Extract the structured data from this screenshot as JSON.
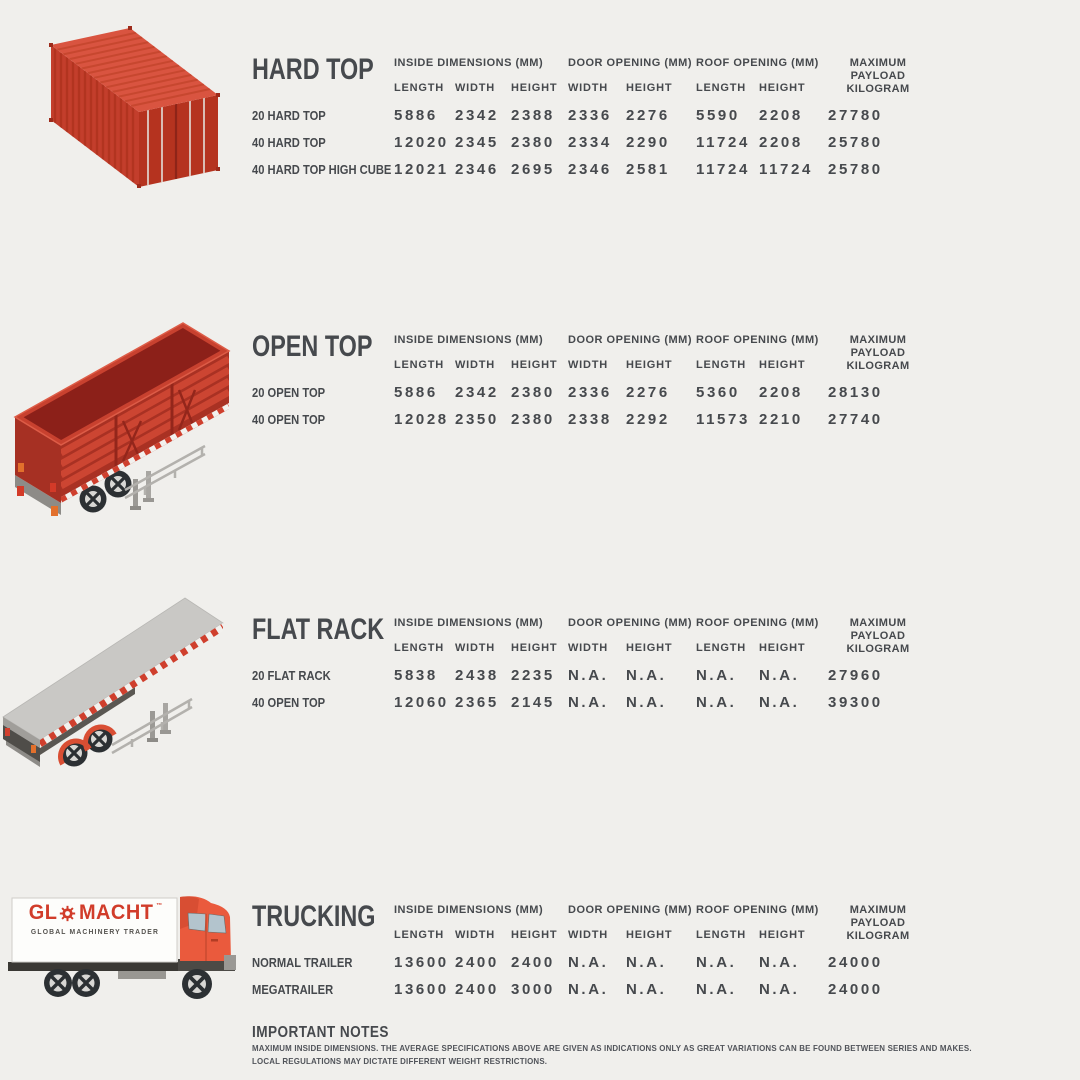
{
  "page": {
    "background": "#f0efec",
    "ink": "#46494d",
    "accent_red": "#c8402e",
    "container_top_red": "#d95440",
    "container_side_red": "#c33e2c",
    "hazard_red": "#cf3f2d",
    "deck_gray": "#c9c8c5",
    "cab_orange": "#ea5a3d"
  },
  "table_headers": {
    "groups": [
      {
        "label": "INSIDE DIMENSIONS (MM)",
        "span": 3
      },
      {
        "label": "DOOR OPENING (MM)",
        "span": 2
      },
      {
        "label": "ROOF OPENING (MM)",
        "span": 2
      },
      {
        "label": "MAXIMUM PAYLOAD",
        "label2": "KILOGRAM",
        "span": 1
      }
    ],
    "sub": [
      "LENGTH",
      "WIDTH",
      "HEIGHT",
      "WIDTH",
      "HEIGHT",
      "LENGTH",
      "HEIGHT"
    ]
  },
  "sections": [
    {
      "title": "HARD TOP",
      "illustration": "hard-top-container",
      "rows": [
        {
          "label": "20 HARD TOP",
          "values": [
            "5886",
            "2342",
            "2388",
            "2336",
            "2276",
            "5590",
            "2208",
            "27780"
          ]
        },
        {
          "label": "40 HARD TOP",
          "values": [
            "12020",
            "2345",
            "2380",
            "2334",
            "2290",
            "11724",
            "2208",
            "25780"
          ]
        },
        {
          "label": "40 HARD TOP HIGH CUBE",
          "values": [
            "12021",
            "2346",
            "2695",
            "2346",
            "2581",
            "11724",
            "11724",
            "25780"
          ]
        }
      ]
    },
    {
      "title": "OPEN TOP",
      "illustration": "open-top-trailer",
      "rows": [
        {
          "label": "20 OPEN TOP",
          "values": [
            "5886",
            "2342",
            "2380",
            "2336",
            "2276",
            "5360",
            "2208",
            "28130"
          ]
        },
        {
          "label": "40 OPEN TOP",
          "values": [
            "12028",
            "2350",
            "2380",
            "2338",
            "2292",
            "11573",
            "2210",
            "27740"
          ]
        }
      ]
    },
    {
      "title": "FLAT RACK",
      "illustration": "flat-rack-trailer",
      "rows": [
        {
          "label": "20 FLAT RACK",
          "values": [
            "5838",
            "2438",
            "2235",
            "N.A.",
            "N.A.",
            "N.A.",
            "N.A.",
            "27960"
          ]
        },
        {
          "label": "40 OPEN TOP",
          "values": [
            "12060",
            "2365",
            "2145",
            "N.A.",
            "N.A.",
            "N.A.",
            "N.A.",
            "39300"
          ]
        }
      ]
    },
    {
      "title": "TRUCKING",
      "illustration": "glomacht-truck",
      "rows": [
        {
          "label": "NORMAL TRAILER",
          "values": [
            "13600",
            "2400",
            "2400",
            "N.A.",
            "N.A.",
            "N.A.",
            "N.A.",
            "24000"
          ]
        },
        {
          "label": "MEGATRAILER",
          "values": [
            "13600",
            "2400",
            "3000",
            "N.A.",
            "N.A.",
            "N.A.",
            "N.A.",
            "24000"
          ]
        }
      ]
    }
  ],
  "truck_logo": {
    "brand_prefix": "GL",
    "brand_suffix": "MACHT",
    "trademark": "™",
    "tagline": "GLOBAL MACHINERY TRADER"
  },
  "notes": {
    "title": "IMPORTANT NOTES",
    "line1": "MAXIMUM INSIDE DIMENSIONS. THE AVERAGE SPECIFICATIONS ABOVE ARE GIVEN AS INDICATIONS ONLY AS GREAT VARIATIONS CAN BE FOUND BETWEEN SERIES AND MAKES.",
    "line2": "LOCAL REGULATIONS MAY DICTATE DIFFERENT WEIGHT RESTRICTIONS."
  }
}
